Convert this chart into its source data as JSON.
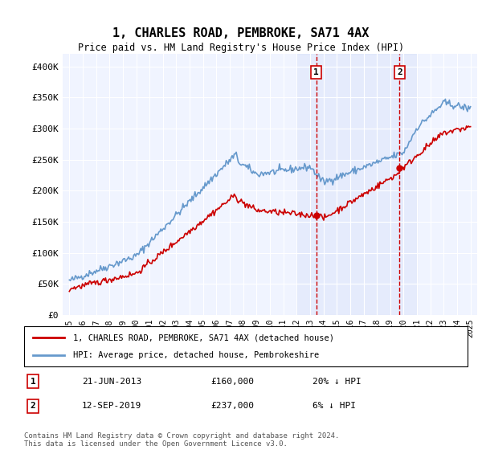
{
  "title": "1, CHARLES ROAD, PEMBROKE, SA71 4AX",
  "subtitle": "Price paid vs. HM Land Registry's House Price Index (HPI)",
  "legend_line1": "1, CHARLES ROAD, PEMBROKE, SA71 4AX (detached house)",
  "legend_line2": "HPI: Average price, detached house, Pembrokeshire",
  "sale1_label": "1",
  "sale1_date": "21-JUN-2013",
  "sale1_price": "£160,000",
  "sale1_hpi": "20% ↓ HPI",
  "sale1_year": 2013.47,
  "sale1_value": 160000,
  "sale2_label": "2",
  "sale2_date": "12-SEP-2019",
  "sale2_price": "£237,000",
  "sale2_hpi": "6% ↓ HPI",
  "sale2_year": 2019.7,
  "sale2_value": 237000,
  "footer": "Contains HM Land Registry data © Crown copyright and database right 2024.\nThis data is licensed under the Open Government Licence v3.0.",
  "ylim": [
    0,
    420000
  ],
  "yticks": [
    0,
    50000,
    100000,
    150000,
    200000,
    250000,
    300000,
    350000,
    400000
  ],
  "ytick_labels": [
    "£0",
    "£50K",
    "£100K",
    "£150K",
    "£200K",
    "£250K",
    "£300K",
    "£350K",
    "£400K"
  ],
  "xlim": [
    1994.5,
    2025.5
  ],
  "background_color": "#f0f4ff",
  "plot_bg": "#f0f4ff",
  "red_color": "#cc0000",
  "blue_color": "#6699cc",
  "shade_start": 2012.0,
  "shade_end": 2021.0
}
